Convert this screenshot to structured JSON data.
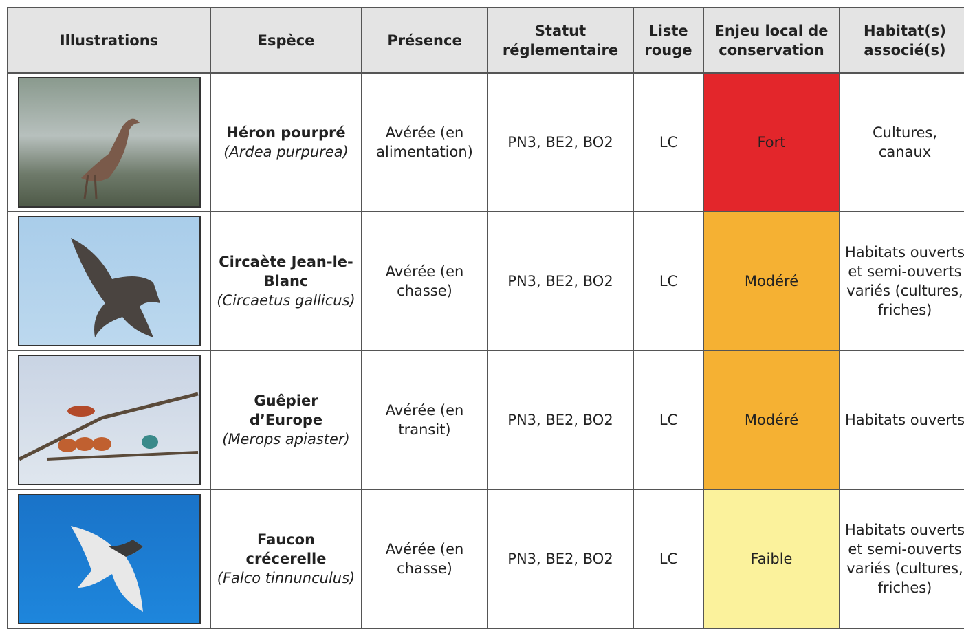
{
  "table": {
    "headers": [
      "Illustrations",
      "Espèce",
      "Présence",
      "Statut réglementaire",
      "Liste rouge",
      "Enjeu local de conservation",
      "Habitat(s) associé(s)"
    ],
    "rows": [
      {
        "species": "Héron pourpré",
        "latin": "(Ardea purpurea)",
        "presence": "Avérée (en alimentation)",
        "status": "PN3, BE2, BO2",
        "red_list": "LC",
        "stake": "Fort",
        "stake_color": "#e3262b",
        "habitat": "Cultures, canaux"
      },
      {
        "species": "Circaète Jean-le-Blanc",
        "latin": "(Circaetus gallicus)",
        "presence": "Avérée (en chasse)",
        "status": "PN3, BE2, BO2",
        "red_list": "LC",
        "stake": "Modéré",
        "stake_color": "#f5b133",
        "habitat": "Habitats ouverts et semi-ouverts variés (cultures, friches)"
      },
      {
        "species": "Guêpier d’Europe",
        "latin": "(Merops apiaster)",
        "presence": "Avérée (en transit)",
        "status": "PN3, BE2, BO2",
        "red_list": "LC",
        "stake": "Modéré",
        "stake_color": "#f5b133",
        "habitat": "Habitats ouverts"
      },
      {
        "species": "Faucon crécerelle",
        "latin": "(Falco tinnunculus)",
        "presence": "Avérée (en chasse)",
        "status": "PN3, BE2, BO2",
        "red_list": "LC",
        "stake": "Faible",
        "stake_color": "#fbf29c",
        "habitat": "Habitats ouverts et semi-ouverts variés (cultures, friches)"
      }
    ]
  }
}
